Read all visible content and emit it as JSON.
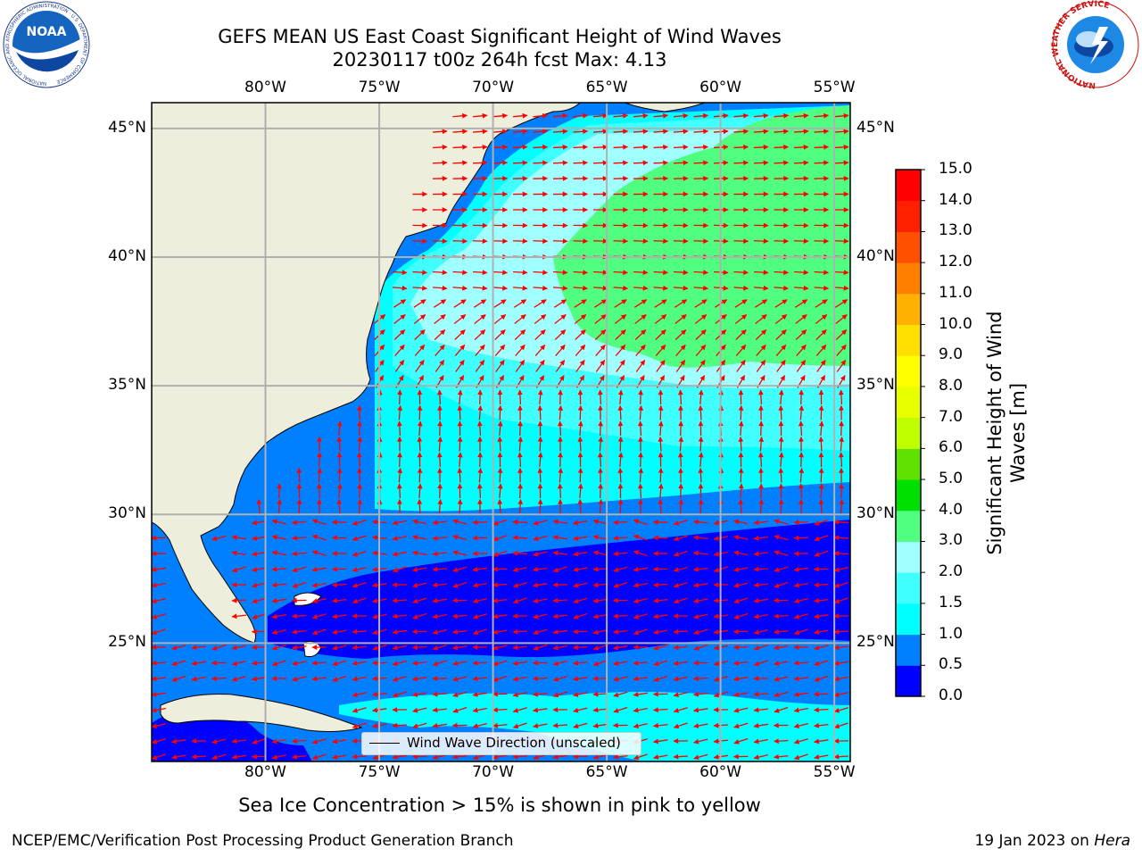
{
  "header": {
    "title_line1": "GEFS MEAN US East Coast Significant Height of Wind Waves",
    "title_line2": "20230117 t00z 264h fcst   Max: 4.13"
  },
  "logos": {
    "noaa_text": "NOAA",
    "noaa_ring_text": "NATIONAL OCEANIC AND ATMOSPHERIC ADMINISTRATION · U.S. DEPARTMENT OF COMMERCE",
    "nws_ring_text": "NATIONAL WEATHER SERVICE"
  },
  "map": {
    "lon_ticks": [
      "80°W",
      "75°W",
      "70°W",
      "65°W",
      "60°W",
      "55°W"
    ],
    "lat_ticks": [
      "45°N",
      "40°N",
      "35°N",
      "30°N",
      "25°N"
    ],
    "lon_values": [
      -80,
      -75,
      -70,
      -65,
      -60,
      -55
    ],
    "lat_values": [
      45,
      40,
      35,
      30,
      25
    ],
    "lon_range": [
      -85,
      -54.3
    ],
    "lat_range": [
      20.4,
      46
    ],
    "arrow_color": "#ff0000",
    "land_color": "#eeeedd",
    "legend_text": "Wind Wave Direction (unscaled)"
  },
  "colorbar": {
    "label": "Significant Height of Wind Waves [m]",
    "label_line1": "Significant Height of Wind",
    "label_line2": "Waves [m]",
    "ticks": [
      "0.0",
      "0.5",
      "1.0",
      "1.5",
      "2.0",
      "3.0",
      "4.0",
      "5.0",
      "6.0",
      "7.0",
      "8.0",
      "9.0",
      "10.0",
      "11.0",
      "12.0",
      "13.0",
      "14.0",
      "15.0"
    ],
    "colors": [
      "#0000ff",
      "#0080ff",
      "#00ffff",
      "#40ffff",
      "#a0ffff",
      "#50ff80",
      "#00e000",
      "#60e000",
      "#c0ff00",
      "#e8ff00",
      "#ffff00",
      "#ffe000",
      "#ffb000",
      "#ff8000",
      "#ff5000",
      "#ff2000",
      "#ff0000"
    ]
  },
  "notes": {
    "sea_ice": "Sea Ice Concentration > 15% is shown in pink to yellow"
  },
  "footer": {
    "left": "NCEP/EMC/Verification Post Processing Product Generation Branch",
    "right_date": "19 Jan 2023 on ",
    "right_machine": "Hera"
  }
}
